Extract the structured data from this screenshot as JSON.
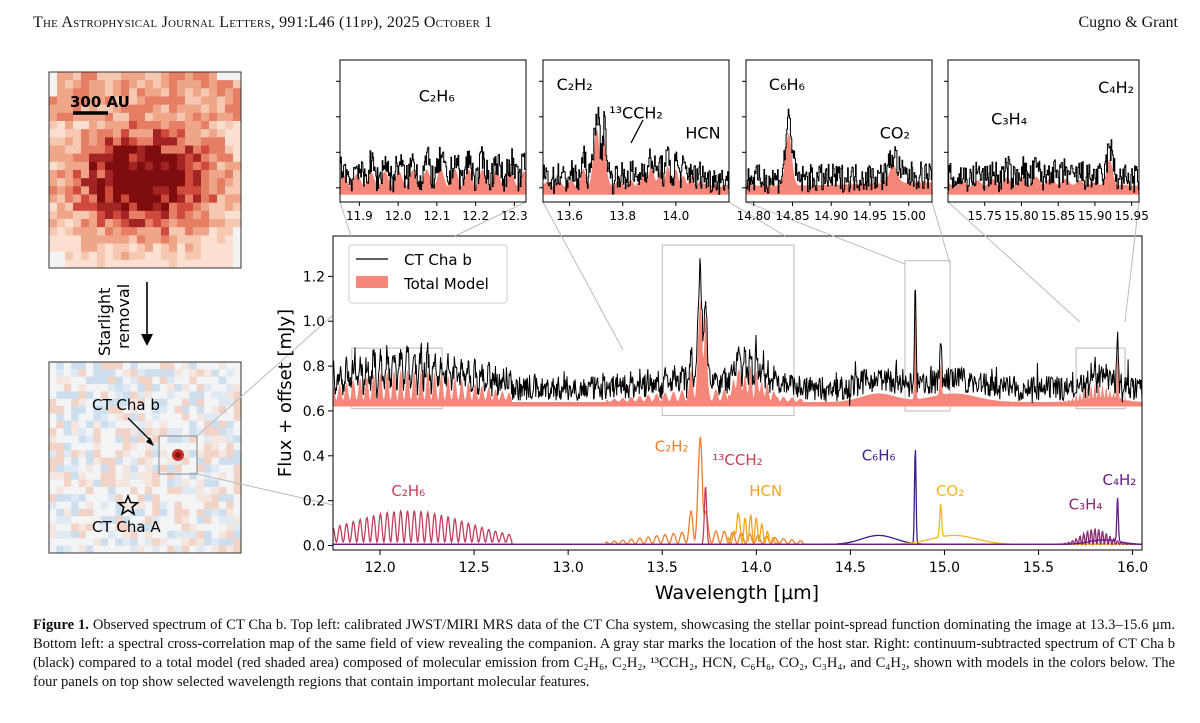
{
  "header": {
    "journal": "The Astrophysical Journal Letters, 991:L46 (11pp), 2025 October 1",
    "authors": "Cugno & Grant"
  },
  "left_panels": {
    "scale_label": "300 AU",
    "arrow_label_1": "Starlight",
    "arrow_label_2": "removal",
    "companion_label": "CT Cha b",
    "host_label": "CT Cha A"
  },
  "colors": {
    "model_fill": "#f4877a",
    "C2H6": "#c43e5e",
    "C2H2": "#ef7d2a",
    "13CCH2": "#c43e5e",
    "HCN": "#f2a51b",
    "C6H6": "#3b1f8a",
    "CO2": "#f4b71c",
    "C3H4": "#8a2a6f",
    "C4H2": "#6a1a8a"
  },
  "chart_data": [
    {
      "type": "line",
      "title": "",
      "xlabel": "Wavelength [μm]",
      "ylabel": "Flux + offset [mJy]",
      "xlim": [
        11.75,
        16.05
      ],
      "ylim": [
        -0.02,
        1.38
      ],
      "xticks": [
        "12.0",
        "12.5",
        "13.0",
        "13.5",
        "14.0",
        "14.5",
        "15.0",
        "15.5",
        "16.0"
      ],
      "yticks": [
        "0.0",
        "0.2",
        "0.4",
        "0.6",
        "0.8",
        "1.0",
        "1.2"
      ],
      "legend": [
        "CT Cha b",
        "Total Model"
      ],
      "legend_position": "top-left",
      "series": [
        {
          "name": "CT Cha b",
          "offset": 0.7,
          "baseline_noise": 0.05
        },
        {
          "name": "Total Model",
          "offset": 0.64
        },
        {
          "name": "C2H6",
          "label": "C₂H₆",
          "range": [
            11.75,
            12.7
          ],
          "peak": 0.14
        },
        {
          "name": "C2H2",
          "label": "C₂H₂",
          "range": [
            13.2,
            14.2
          ],
          "peak": 0.55
        },
        {
          "name": "13CCH2",
          "label": "¹³CCH₂",
          "peak_x": 13.73,
          "peak": 0.26
        },
        {
          "name": "HCN",
          "label": "HCN",
          "range": [
            13.85,
            14.1
          ],
          "peak": 0.21
        },
        {
          "name": "C6H6",
          "label": "C₆H₆",
          "peak_x": 14.84,
          "peak": 0.44
        },
        {
          "name": "CO2",
          "label": "CO₂",
          "peak_x": 14.98,
          "peak": 0.15
        },
        {
          "name": "C3H4",
          "label": "C₃H₄",
          "range": [
            15.6,
            15.95
          ],
          "peak": 0.07
        },
        {
          "name": "C4H2",
          "label": "C₄H₂",
          "peak_x": 15.92,
          "peak": 0.22
        }
      ],
      "annotations": [
        {
          "text": "C₂H₆",
          "x": 12.15,
          "y": 0.22
        },
        {
          "text": "C₂H₂",
          "x": 13.55,
          "y": 0.42
        },
        {
          "text": "¹³CCH₂",
          "x": 13.9,
          "y": 0.36
        },
        {
          "text": "HCN",
          "x": 14.05,
          "y": 0.22
        },
        {
          "text": "C₆H₆",
          "x": 14.65,
          "y": 0.38
        },
        {
          "text": "CO₂",
          "x": 15.03,
          "y": 0.22
        },
        {
          "text": "C₃H₄",
          "x": 15.75,
          "y": 0.16
        },
        {
          "text": "C₄H₂",
          "x": 15.93,
          "y": 0.27
        }
      ]
    },
    {
      "type": "line",
      "panel": "zoom-1",
      "label": "C₂H₆",
      "xlim": [
        11.85,
        12.33
      ],
      "xticks": [
        "11.9",
        "12.0",
        "12.1",
        "12.2",
        "12.3"
      ]
    },
    {
      "type": "line",
      "panel": "zoom-2",
      "labels": [
        "C₂H₂",
        "¹³CCH₂",
        "HCN"
      ],
      "xlim": [
        13.5,
        14.2
      ],
      "xticks": [
        "13.6",
        "13.8",
        "14.0"
      ]
    },
    {
      "type": "line",
      "panel": "zoom-3",
      "labels": [
        "C₆H₆",
        "CO₂"
      ],
      "xlim": [
        14.79,
        15.03
      ],
      "xticks": [
        "14.80",
        "14.85",
        "14.90",
        "14.95",
        "15.00"
      ]
    },
    {
      "type": "line",
      "panel": "zoom-4",
      "labels": [
        "C₃H₄",
        "C₄H₂"
      ],
      "xlim": [
        15.7,
        15.96
      ],
      "xticks": [
        "15.75",
        "15.80",
        "15.85",
        "15.90",
        "15.95"
      ]
    }
  ],
  "caption": {
    "label": "Figure 1.",
    "text": " Observed spectrum of CT Cha b. Top left: calibrated JWST/MIRI MRS data of the CT Cha system, showcasing the stellar point-spread function dominating the image at 13.3–15.6 μm. Bottom left: a spectral cross-correlation map of the same field of view revealing the companion. A gray star marks the location of the host star. Right: continuum-subtracted spectrum of CT Cha b (black) compared to a total model (red shaded area) composed of molecular emission from C₂H₆, C₂H₂, ¹³CCH₂, HCN, C₆H₆, CO₂, C₃H₄, and C₄H₂, shown with models in the colors below. The four panels on top show selected wavelength regions that contain important molecular features."
  }
}
